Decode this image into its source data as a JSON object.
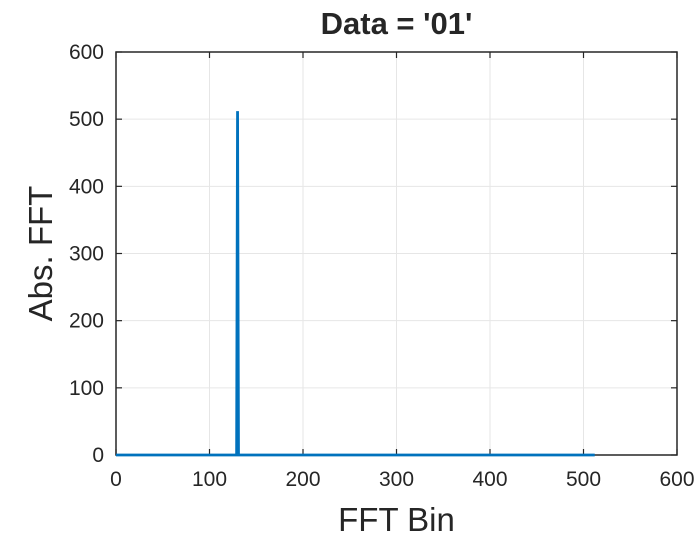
{
  "chart_data": {
    "type": "line",
    "title": "Data = '01'",
    "xlabel": "FFT Bin",
    "ylabel": "Abs. FFT",
    "xlim": [
      0,
      600
    ],
    "ylim": [
      0,
      600
    ],
    "xticks": [
      0,
      100,
      200,
      300,
      400,
      500,
      600
    ],
    "yticks": [
      0,
      100,
      200,
      300,
      400,
      500,
      600
    ],
    "grid": true,
    "series": [
      {
        "color": "#0072BD",
        "x": [
          0,
          129,
          130,
          131,
          512
        ],
        "y": [
          0,
          0,
          512,
          0,
          0
        ]
      }
    ]
  }
}
